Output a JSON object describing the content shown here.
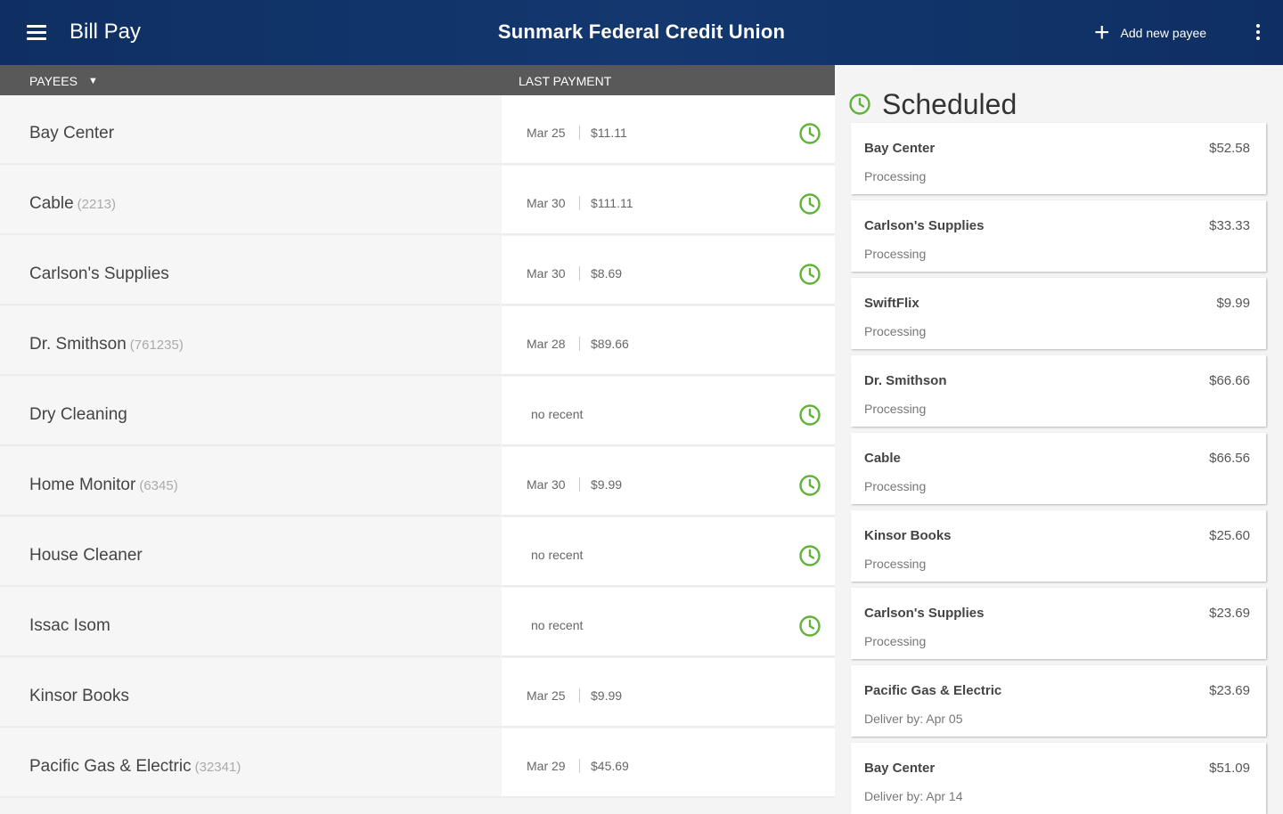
{
  "header": {
    "app_title": "Bill Pay",
    "bank_name": "Sunmark Federal Credit Union",
    "add_payee_label": "Add new payee"
  },
  "columns": {
    "payees": "PAYEES",
    "last_payment": "LAST PAYMENT"
  },
  "payees": [
    {
      "name": "Bay Center",
      "account": "",
      "date": "Mar 25",
      "amount": "$11.11",
      "no_recent": "",
      "scheduled": true
    },
    {
      "name": "Cable",
      "account": "(2213)",
      "date": "Mar 30",
      "amount": "$111.11",
      "no_recent": "",
      "scheduled": true
    },
    {
      "name": "Carlson's Supplies",
      "account": "",
      "date": "Mar 30",
      "amount": "$8.69",
      "no_recent": "",
      "scheduled": true
    },
    {
      "name": "Dr. Smithson",
      "account": "(761235)",
      "date": "Mar 28",
      "amount": "$89.66",
      "no_recent": "",
      "scheduled": false
    },
    {
      "name": "Dry Cleaning",
      "account": "",
      "date": "",
      "amount": "",
      "no_recent": "no recent",
      "scheduled": true
    },
    {
      "name": "Home Monitor",
      "account": "(6345)",
      "date": "Mar 30",
      "amount": "$9.99",
      "no_recent": "",
      "scheduled": true
    },
    {
      "name": "House Cleaner",
      "account": "",
      "date": "",
      "amount": "",
      "no_recent": "no recent",
      "scheduled": true
    },
    {
      "name": "Issac Isom",
      "account": "",
      "date": "",
      "amount": "",
      "no_recent": "no recent",
      "scheduled": true
    },
    {
      "name": "Kinsor Books",
      "account": "",
      "date": "Mar 25",
      "amount": "$9.99",
      "no_recent": "",
      "scheduled": false
    },
    {
      "name": "Pacific Gas & Electric",
      "account": "(32341)",
      "date": "Mar 29",
      "amount": "$45.69",
      "no_recent": "",
      "scheduled": false
    }
  ],
  "scheduled": {
    "title": "Scheduled",
    "items": [
      {
        "name": "Bay Center",
        "amount": "$52.58",
        "status": "Processing"
      },
      {
        "name": "Carlson's Supplies",
        "amount": "$33.33",
        "status": "Processing"
      },
      {
        "name": "SwiftFlix",
        "amount": "$9.99",
        "status": "Processing"
      },
      {
        "name": "Dr. Smithson",
        "amount": "$66.66",
        "status": "Processing"
      },
      {
        "name": "Cable",
        "amount": "$66.56",
        "status": "Processing"
      },
      {
        "name": "Kinsor Books",
        "amount": "$25.60",
        "status": "Processing"
      },
      {
        "name": "Carlson's Supplies",
        "amount": "$23.69",
        "status": "Processing"
      },
      {
        "name": "Pacific Gas & Electric",
        "amount": "$23.69",
        "status": "Deliver by: Apr 05"
      },
      {
        "name": "Bay Center",
        "amount": "$51.09",
        "status": "Deliver by: Apr 14"
      }
    ]
  },
  "colors": {
    "header_blue": "#12386f",
    "column_header_gray": "#595959",
    "scheduled_green": "#5fb336"
  },
  "icons": {
    "menu": "menu-icon",
    "add": "plus-icon",
    "overflow": "more-vert-icon",
    "dropdown": "caret-down-icon",
    "schedule": "clock-icon"
  }
}
